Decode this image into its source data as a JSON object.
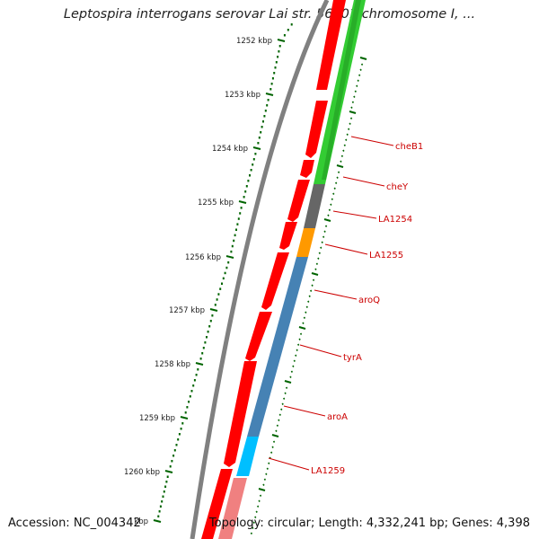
{
  "title": "Leptospira interrogans serovar Lai str. 56601 chromosome I, ...",
  "accession": "Accession: NC_004342",
  "topology": "Topology: circular; Length: 4,332,241 bp; Genes: 4,398",
  "ticks": [
    {
      "label": "1252 kbp"
    },
    {
      "label": "1253 kbp"
    },
    {
      "label": "1254 kbp"
    },
    {
      "label": "1255 kbp"
    },
    {
      "label": "1256 kbp"
    },
    {
      "label": "1257 kbp"
    },
    {
      "label": "1258 kbp"
    },
    {
      "label": "1259 kbp"
    },
    {
      "label": "1260 kbp"
    },
    {
      "label": "kbp"
    }
  ],
  "genes": [
    {
      "label": "cheB1",
      "color": "#33cc33"
    },
    {
      "label": "cheY",
      "color": "#666666"
    },
    {
      "label": "LA1254",
      "color": "#666666"
    },
    {
      "label": "LA1255",
      "color": "#ff9900"
    },
    {
      "label": "aroQ",
      "color": "#4682b4"
    },
    {
      "label": "tyrA",
      "color": "#4682b4"
    },
    {
      "label": "aroA",
      "color": "#4682b4"
    },
    {
      "label": "LA1259",
      "color": "#00bfff"
    }
  ],
  "colors": {
    "forward_strand": "#ff0000",
    "reverse_strand_upper": "#22bb22",
    "reverse_strand_lower": "#f08080",
    "backbone": "#808080",
    "ticks": "#006400",
    "labels": "#cc0000"
  }
}
